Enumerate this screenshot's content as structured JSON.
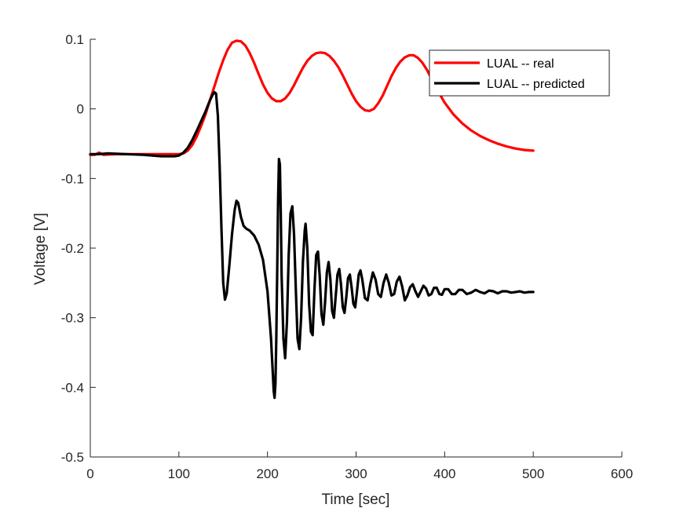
{
  "chart_data": {
    "type": "line",
    "title": "",
    "xlabel": "Time [sec]",
    "ylabel": "Voltage [V]",
    "xlim": [
      0,
      600
    ],
    "ylim": [
      -0.5,
      0.1
    ],
    "xticks": [
      0,
      100,
      200,
      300,
      400,
      500,
      600
    ],
    "yticks": [
      -0.5,
      -0.4,
      -0.3,
      -0.2,
      -0.1,
      0,
      0.1
    ],
    "xtick_labels": [
      "0",
      "100",
      "200",
      "300",
      "400",
      "500",
      "600"
    ],
    "ytick_labels": [
      "-0.5",
      "-0.4",
      "-0.3",
      "-0.2",
      "-0.1",
      "0",
      "0.1"
    ],
    "grid": false,
    "legend_position": "top-right",
    "series": [
      {
        "name": "LUAL -- real",
        "color": "#ff0000",
        "points": [
          [
            0,
            -0.066
          ],
          [
            5,
            -0.066
          ],
          [
            10,
            -0.063
          ],
          [
            15,
            -0.066
          ],
          [
            30,
            -0.065
          ],
          [
            60,
            -0.065
          ],
          [
            90,
            -0.065
          ],
          [
            100,
            -0.065
          ],
          [
            105,
            -0.064
          ],
          [
            110,
            -0.06
          ],
          [
            115,
            -0.052
          ],
          [
            120,
            -0.04
          ],
          [
            125,
            -0.025
          ],
          [
            130,
            -0.008
          ],
          [
            135,
            0.012
          ],
          [
            140,
            0.032
          ],
          [
            145,
            0.052
          ],
          [
            150,
            0.07
          ],
          [
            155,
            0.085
          ],
          [
            160,
            0.095
          ],
          [
            165,
            0.098
          ],
          [
            170,
            0.097
          ],
          [
            175,
            0.091
          ],
          [
            180,
            0.08
          ],
          [
            185,
            0.066
          ],
          [
            190,
            0.05
          ],
          [
            195,
            0.035
          ],
          [
            200,
            0.023
          ],
          [
            205,
            0.015
          ],
          [
            210,
            0.011
          ],
          [
            215,
            0.011
          ],
          [
            220,
            0.015
          ],
          [
            225,
            0.023
          ],
          [
            230,
            0.034
          ],
          [
            235,
            0.047
          ],
          [
            240,
            0.059
          ],
          [
            245,
            0.069
          ],
          [
            250,
            0.076
          ],
          [
            255,
            0.08
          ],
          [
            260,
            0.081
          ],
          [
            265,
            0.08
          ],
          [
            270,
            0.076
          ],
          [
            275,
            0.069
          ],
          [
            280,
            0.06
          ],
          [
            285,
            0.048
          ],
          [
            290,
            0.035
          ],
          [
            295,
            0.022
          ],
          [
            300,
            0.011
          ],
          [
            305,
            0.003
          ],
          [
            310,
            -0.002
          ],
          [
            315,
            -0.003
          ],
          [
            320,
            0.0
          ],
          [
            325,
            0.008
          ],
          [
            330,
            0.019
          ],
          [
            335,
            0.033
          ],
          [
            340,
            0.047
          ],
          [
            345,
            0.059
          ],
          [
            350,
            0.068
          ],
          [
            355,
            0.074
          ],
          [
            360,
            0.077
          ],
          [
            365,
            0.077
          ],
          [
            370,
            0.073
          ],
          [
            375,
            0.066
          ],
          [
            380,
            0.056
          ],
          [
            385,
            0.044
          ],
          [
            390,
            0.032
          ],
          [
            395,
            0.02
          ],
          [
            400,
            0.009
          ],
          [
            410,
            -0.008
          ],
          [
            420,
            -0.021
          ],
          [
            430,
            -0.031
          ],
          [
            440,
            -0.039
          ],
          [
            450,
            -0.045
          ],
          [
            460,
            -0.05
          ],
          [
            470,
            -0.054
          ],
          [
            480,
            -0.057
          ],
          [
            490,
            -0.059
          ],
          [
            500,
            -0.06
          ]
        ]
      },
      {
        "name": "LUAL -- predicted",
        "color": "#000000",
        "points": [
          [
            0,
            -0.065
          ],
          [
            10,
            -0.065
          ],
          [
            20,
            -0.064
          ],
          [
            40,
            -0.065
          ],
          [
            60,
            -0.066
          ],
          [
            80,
            -0.068
          ],
          [
            95,
            -0.068
          ],
          [
            100,
            -0.067
          ],
          [
            105,
            -0.063
          ],
          [
            110,
            -0.056
          ],
          [
            115,
            -0.045
          ],
          [
            120,
            -0.032
          ],
          [
            125,
            -0.018
          ],
          [
            130,
            -0.004
          ],
          [
            135,
            0.012
          ],
          [
            138,
            0.02
          ],
          [
            140,
            0.024
          ],
          [
            142,
            0.022
          ],
          [
            144,
            -0.01
          ],
          [
            146,
            -0.08
          ],
          [
            148,
            -0.17
          ],
          [
            150,
            -0.25
          ],
          [
            152,
            -0.274
          ],
          [
            154,
            -0.265
          ],
          [
            157,
            -0.225
          ],
          [
            160,
            -0.18
          ],
          [
            163,
            -0.145
          ],
          [
            165,
            -0.132
          ],
          [
            167,
            -0.135
          ],
          [
            170,
            -0.155
          ],
          [
            173,
            -0.168
          ],
          [
            176,
            -0.172
          ],
          [
            180,
            -0.175
          ],
          [
            185,
            -0.182
          ],
          [
            190,
            -0.195
          ],
          [
            195,
            -0.217
          ],
          [
            200,
            -0.262
          ],
          [
            204,
            -0.33
          ],
          [
            207,
            -0.405
          ],
          [
            208,
            -0.415
          ],
          [
            209,
            -0.395
          ],
          [
            210,
            -0.33
          ],
          [
            211,
            -0.23
          ],
          [
            212,
            -0.13
          ],
          [
            213,
            -0.072
          ],
          [
            214,
            -0.08
          ],
          [
            215,
            -0.15
          ],
          [
            216,
            -0.24
          ],
          [
            218,
            -0.33
          ],
          [
            220,
            -0.358
          ],
          [
            222,
            -0.305
          ],
          [
            224,
            -0.21
          ],
          [
            226,
            -0.15
          ],
          [
            228,
            -0.14
          ],
          [
            230,
            -0.18
          ],
          [
            232,
            -0.26
          ],
          [
            234,
            -0.33
          ],
          [
            236,
            -0.345
          ],
          [
            238,
            -0.3
          ],
          [
            240,
            -0.22
          ],
          [
            242,
            -0.175
          ],
          [
            243,
            -0.165
          ],
          [
            245,
            -0.2
          ],
          [
            247,
            -0.28
          ],
          [
            249,
            -0.32
          ],
          [
            251,
            -0.325
          ],
          [
            253,
            -0.26
          ],
          [
            255,
            -0.21
          ],
          [
            257,
            -0.205
          ],
          [
            259,
            -0.24
          ],
          [
            261,
            -0.295
          ],
          [
            263,
            -0.31
          ],
          [
            265,
            -0.278
          ],
          [
            267,
            -0.235
          ],
          [
            269,
            -0.22
          ],
          [
            271,
            -0.245
          ],
          [
            273,
            -0.29
          ],
          [
            275,
            -0.3
          ],
          [
            277,
            -0.27
          ],
          [
            279,
            -0.238
          ],
          [
            281,
            -0.23
          ],
          [
            283,
            -0.252
          ],
          [
            285,
            -0.285
          ],
          [
            287,
            -0.293
          ],
          [
            289,
            -0.27
          ],
          [
            291,
            -0.243
          ],
          [
            293,
            -0.238
          ],
          [
            295,
            -0.257
          ],
          [
            297,
            -0.28
          ],
          [
            299,
            -0.285
          ],
          [
            301,
            -0.263
          ],
          [
            303,
            -0.238
          ],
          [
            305,
            -0.232
          ],
          [
            307,
            -0.245
          ],
          [
            310,
            -0.272
          ],
          [
            313,
            -0.275
          ],
          [
            316,
            -0.252
          ],
          [
            319,
            -0.235
          ],
          [
            322,
            -0.245
          ],
          [
            325,
            -0.266
          ],
          [
            328,
            -0.27
          ],
          [
            331,
            -0.25
          ],
          [
            334,
            -0.238
          ],
          [
            337,
            -0.25
          ],
          [
            340,
            -0.268
          ],
          [
            343,
            -0.266
          ],
          [
            346,
            -0.248
          ],
          [
            349,
            -0.241
          ],
          [
            352,
            -0.255
          ],
          [
            355,
            -0.275
          ],
          [
            358,
            -0.268
          ],
          [
            361,
            -0.256
          ],
          [
            364,
            -0.252
          ],
          [
            367,
            -0.262
          ],
          [
            370,
            -0.27
          ],
          [
            373,
            -0.262
          ],
          [
            376,
            -0.254
          ],
          [
            379,
            -0.258
          ],
          [
            382,
            -0.268
          ],
          [
            385,
            -0.266
          ],
          [
            388,
            -0.257
          ],
          [
            391,
            -0.257
          ],
          [
            394,
            -0.266
          ],
          [
            397,
            -0.267
          ],
          [
            400,
            -0.259
          ],
          [
            404,
            -0.259
          ],
          [
            408,
            -0.266
          ],
          [
            412,
            -0.266
          ],
          [
            416,
            -0.26
          ],
          [
            420,
            -0.26
          ],
          [
            425,
            -0.266
          ],
          [
            430,
            -0.264
          ],
          [
            435,
            -0.26
          ],
          [
            440,
            -0.263
          ],
          [
            445,
            -0.265
          ],
          [
            450,
            -0.261
          ],
          [
            455,
            -0.262
          ],
          [
            460,
            -0.265
          ],
          [
            465,
            -0.262
          ],
          [
            470,
            -0.262
          ],
          [
            475,
            -0.264
          ],
          [
            480,
            -0.263
          ],
          [
            485,
            -0.262
          ],
          [
            490,
            -0.264
          ],
          [
            495,
            -0.263
          ],
          [
            500,
            -0.263
          ]
        ]
      }
    ]
  }
}
